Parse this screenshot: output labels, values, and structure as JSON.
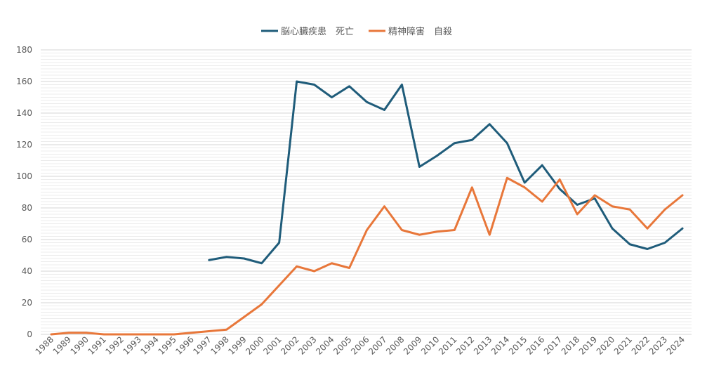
{
  "chart_data": {
    "type": "line",
    "title": "",
    "xlabel": "",
    "ylabel": "",
    "ylim": [
      0,
      180
    ],
    "ytick_step": 20,
    "grid": true,
    "legend_position": "top-center",
    "categories": [
      "1988",
      "1989",
      "1990",
      "1991",
      "1992",
      "1993",
      "1994",
      "1995",
      "1996",
      "1997",
      "1998",
      "1999",
      "2000",
      "2001",
      "2002",
      "2003",
      "2004",
      "2005",
      "2006",
      "2007",
      "2008",
      "2009",
      "2010",
      "2011",
      "2012",
      "2013",
      "2014",
      "2015",
      "2016",
      "2017",
      "2018",
      "2019",
      "2020",
      "2021",
      "2022",
      "2023",
      "2024"
    ],
    "series": [
      {
        "name": "脳心臓疾患　死亡",
        "color": "#1f5c7a",
        "values": [
          null,
          null,
          null,
          null,
          null,
          null,
          null,
          null,
          null,
          47,
          49,
          48,
          45,
          58,
          160,
          158,
          150,
          157,
          147,
          142,
          158,
          106,
          113,
          121,
          123,
          133,
          121,
          96,
          107,
          92,
          82,
          86,
          67,
          57,
          54,
          58,
          67
        ]
      },
      {
        "name": "精神障害　自殺",
        "color": "#e8773a",
        "values": [
          0,
          1,
          1,
          0,
          0,
          0,
          0,
          0,
          1,
          2,
          3,
          11,
          19,
          31,
          43,
          40,
          45,
          42,
          66,
          81,
          66,
          63,
          65,
          66,
          93,
          63,
          99,
          93,
          84,
          98,
          76,
          88,
          81,
          79,
          67,
          79,
          88
        ]
      }
    ]
  }
}
